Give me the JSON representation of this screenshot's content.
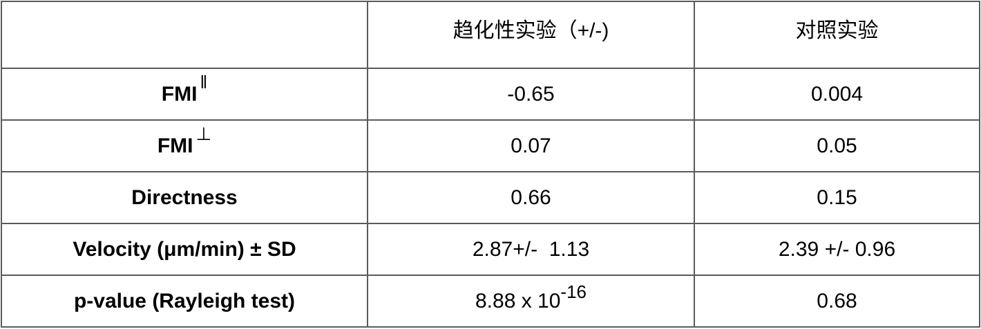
{
  "table": {
    "headers": [
      "",
      "趋化性实验（+/-)",
      "对照实验"
    ],
    "rows": [
      {
        "label": "FMI",
        "label_sup": "‖",
        "values": [
          "-0.65",
          "0.004"
        ]
      },
      {
        "label": "FMI",
        "label_sup": "⊥",
        "values": [
          "0.07",
          "0.05"
        ]
      },
      {
        "label": "Directness",
        "values": [
          "0.66",
          "0.15"
        ]
      },
      {
        "label": "Velocity (μm/min) ± SD",
        "values": [
          "2.87+/-  1.13",
          "2.39 +/- 0.96"
        ]
      },
      {
        "label": "p-value (Rayleigh test)",
        "values_base": "8.88 x 10",
        "values_exp": "-16",
        "values": [
          "",
          "0.68"
        ]
      }
    ]
  }
}
